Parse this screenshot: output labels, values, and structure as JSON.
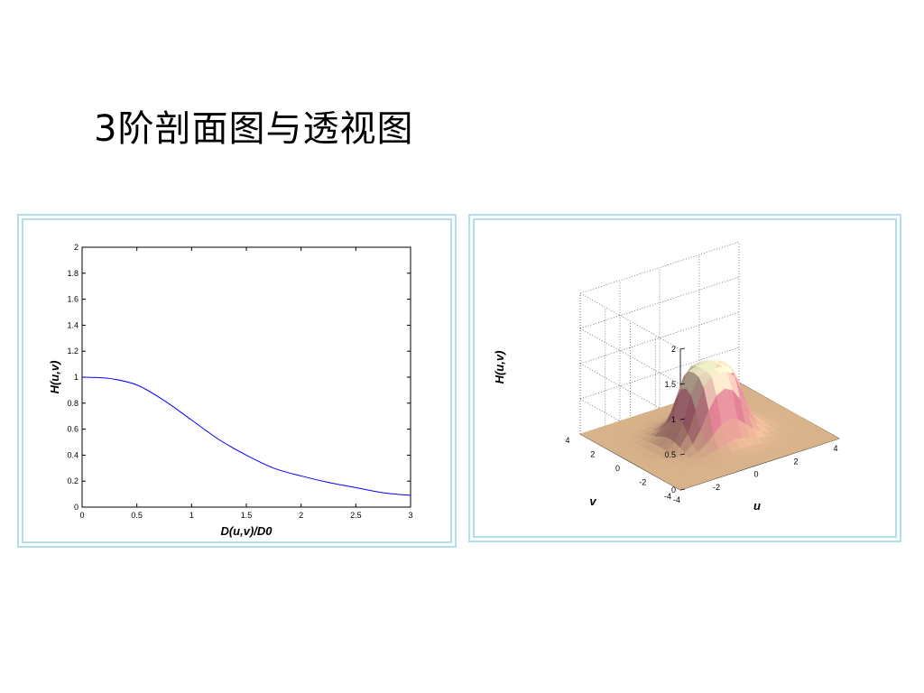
{
  "slide": {
    "title": "3阶剖面图与透视图"
  },
  "chart_data": [
    {
      "type": "line",
      "xlabel": "D(u,v)/D0",
      "ylabel": "H(u,v)",
      "xlim": [
        0,
        3
      ],
      "ylim": [
        0,
        2
      ],
      "xticks": [
        "0",
        "0.5",
        "1",
        "1.5",
        "2",
        "2.5",
        "3"
      ],
      "yticks": [
        "0",
        "0.2",
        "0.4",
        "0.6",
        "0.8",
        "1",
        "1.2",
        "1.4",
        "1.6",
        "1.8",
        "2"
      ],
      "grid": false,
      "series": [
        {
          "color": "#0000ff",
          "x": [
            0,
            0.25,
            0.5,
            0.75,
            1,
            1.25,
            1.5,
            1.75,
            2,
            2.25,
            2.5,
            2.75,
            3
          ],
          "y": [
            1.0,
            0.99,
            0.94,
            0.82,
            0.67,
            0.52,
            0.4,
            0.3,
            0.24,
            0.19,
            0.15,
            0.11,
            0.09
          ]
        }
      ]
    },
    {
      "type": "surface",
      "xlabel": "u",
      "ylabel": "v",
      "zlabel": "H(u,v)",
      "xlim": [
        -4,
        4
      ],
      "ylim": [
        -4,
        4
      ],
      "zlim": [
        0,
        2
      ],
      "xticks": [
        "-4",
        "-2",
        "0",
        "2",
        "4"
      ],
      "yticks": [
        "-4",
        "-2",
        "0",
        "2",
        "4"
      ],
      "zticks": [
        "0",
        "0.5",
        "1",
        "1.5",
        "2"
      ],
      "grid": true,
      "peak": 1,
      "colors": {
        "low": "#d8b38a",
        "mid": "#c56f84",
        "high": "#f2f0c8"
      }
    }
  ]
}
